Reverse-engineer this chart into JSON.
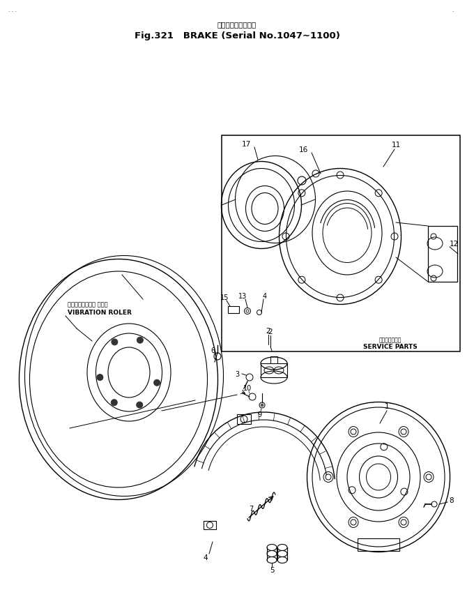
{
  "title_jp": "ブレーキ（適用号機",
  "title_en": "Fig.321   BRAKE (Serial No.1047∼1100)",
  "bg_color": "#ffffff",
  "lc": "#000000",
  "fig_width": 6.8,
  "fig_height": 8.7,
  "dpi": 100,
  "vib_jp": "バイブレーション ローラ",
  "vib_en": "VIBRATION ROLER",
  "svc_jp": "サービスパーツ",
  "svc_en": "SERVICE PARTS"
}
